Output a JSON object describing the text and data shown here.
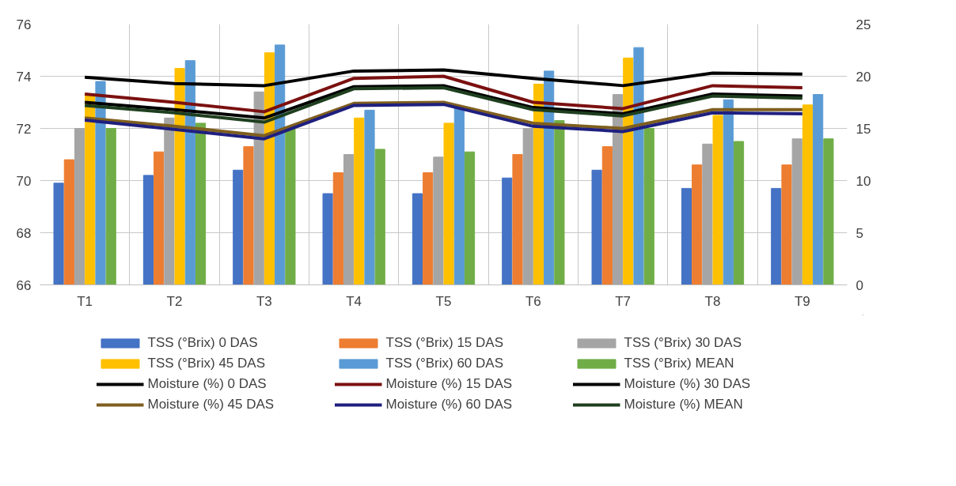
{
  "chart_data": {
    "type": "bar",
    "categories": [
      "T1",
      "T2",
      "T3",
      "T4",
      "T5",
      "T6",
      "T7",
      "T8",
      "T9"
    ],
    "series": [
      {
        "name": "TSS (°Brix) 0 DAS",
        "color": "#4472c4",
        "values": [
          69.9,
          70.2,
          70.4,
          69.5,
          69.5,
          70.1,
          70.4,
          69.7,
          69.7
        ]
      },
      {
        "name": "TSS (°Brix) 15 DAS",
        "color": "#ed7d31",
        "values": [
          70.8,
          71.1,
          71.3,
          70.3,
          70.3,
          71.0,
          71.3,
          70.6,
          70.6
        ]
      },
      {
        "name": "TSS (°Brix) 30 DAS",
        "color": "#a5a5a5",
        "values": [
          72.0,
          72.4,
          73.4,
          71.0,
          70.9,
          72.0,
          73.3,
          71.4,
          71.6
        ]
      },
      {
        "name": "TSS (°Brix) 45 DAS",
        "color": "#ffc000",
        "values": [
          73.3,
          74.3,
          74.9,
          72.4,
          72.2,
          73.7,
          74.7,
          72.5,
          72.9
        ]
      },
      {
        "name": "TSS (°Brix) 60 DAS",
        "color": "#5b9bd5",
        "values": [
          73.8,
          74.6,
          75.2,
          72.7,
          72.8,
          74.2,
          75.1,
          73.1,
          73.3
        ]
      },
      {
        "name": "TSS (°Brix) MEAN",
        "color": "#70ad47",
        "values": [
          72.0,
          72.2,
          72.0,
          71.2,
          71.1,
          72.3,
          72.0,
          71.5,
          71.6
        ]
      },
      {
        "name": "Moisture (%) 0 DAS",
        "type": "line",
        "axis": "y2",
        "color": "#000000",
        "values": [
          19.9,
          19.3,
          19.1,
          20.5,
          20.6,
          19.8,
          19.1,
          20.3,
          20.2
        ]
      },
      {
        "name": "Moisture (%) 15 DAS",
        "type": "line",
        "axis": "y2",
        "color": "#7b1010",
        "values": [
          18.3,
          17.5,
          16.6,
          19.8,
          20.0,
          17.5,
          16.9,
          19.1,
          18.9
        ]
      },
      {
        "name": "Moisture (%) 30 DAS",
        "type": "line",
        "axis": "y2",
        "color": "#000000",
        "values": [
          17.5,
          16.8,
          16.0,
          19.0,
          19.1,
          17.0,
          16.4,
          18.3,
          18.1
        ]
      },
      {
        "name": "Moisture (%) 45 DAS",
        "type": "line",
        "axis": "y2",
        "color": "#7f5f1f",
        "values": [
          16.0,
          15.2,
          14.3,
          17.4,
          17.5,
          15.5,
          15.0,
          16.8,
          16.8
        ]
      },
      {
        "name": "Moisture (%) 60 DAS",
        "type": "line",
        "axis": "y2",
        "color": "#1f1f7f",
        "values": [
          15.8,
          14.9,
          14.0,
          17.2,
          17.3,
          15.2,
          14.7,
          16.5,
          16.4
        ]
      },
      {
        "name": "Moisture (%) MEAN",
        "type": "line",
        "axis": "y2",
        "color": "#1f3f1f",
        "values": [
          17.2,
          16.5,
          15.6,
          18.8,
          18.9,
          16.8,
          16.2,
          18.1,
          17.9
        ]
      }
    ],
    "ylim": [
      66,
      76
    ],
    "yticks": [
      66,
      68,
      70,
      72,
      74,
      76
    ],
    "y2lim": [
      0,
      25
    ],
    "y2ticks": [
      0,
      5,
      10,
      15,
      20,
      25
    ],
    "grid": true,
    "legend": "bottom",
    "line_style": "solid"
  }
}
